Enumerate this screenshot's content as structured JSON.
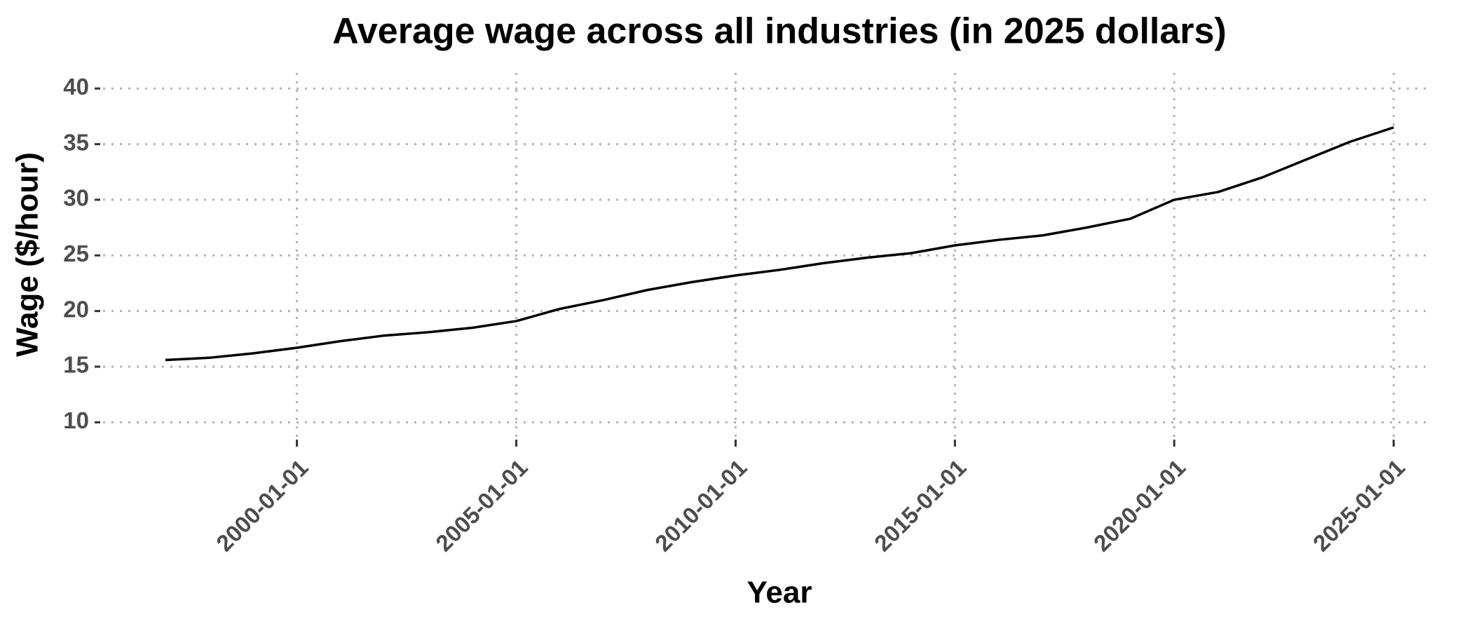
{
  "chart_data": {
    "type": "line",
    "title": "Average wage across all industries (in 2025 dollars)",
    "x_label": "Year",
    "y_label": "Wage ($/hour)",
    "x": [
      "1997-01-01",
      "1998-01-01",
      "1999-01-01",
      "2000-01-01",
      "2001-01-01",
      "2002-01-01",
      "2003-01-01",
      "2004-01-01",
      "2005-01-01",
      "2006-01-01",
      "2007-01-01",
      "2008-01-01",
      "2009-01-01",
      "2010-01-01",
      "2011-01-01",
      "2012-01-01",
      "2013-01-01",
      "2014-01-01",
      "2015-01-01",
      "2016-01-01",
      "2017-01-01",
      "2018-01-01",
      "2019-01-01",
      "2020-01-01",
      "2021-01-01",
      "2022-01-01",
      "2023-01-01",
      "2024-01-01",
      "2025-01-01"
    ],
    "series": [
      {
        "name": "Wage",
        "color": "#000000",
        "values": [
          15.6,
          15.8,
          16.2,
          16.7,
          17.3,
          17.8,
          18.1,
          18.5,
          19.1,
          20.2,
          21.0,
          21.9,
          22.6,
          23.2,
          23.7,
          24.3,
          24.8,
          25.2,
          25.9,
          26.4,
          26.8,
          27.5,
          28.3,
          30.0,
          30.7,
          32.0,
          33.6,
          35.2,
          36.5
        ]
      }
    ],
    "xlim": [
      "1995-08-01",
      "2025-10-01"
    ],
    "xticks": [
      "2000-01-01",
      "2005-01-01",
      "2010-01-01",
      "2015-01-01",
      "2020-01-01",
      "2025-01-01"
    ],
    "ylim": [
      8.7,
      41.4
    ],
    "yticks": [
      10,
      15,
      20,
      25,
      30,
      35,
      40
    ],
    "grid": true
  }
}
